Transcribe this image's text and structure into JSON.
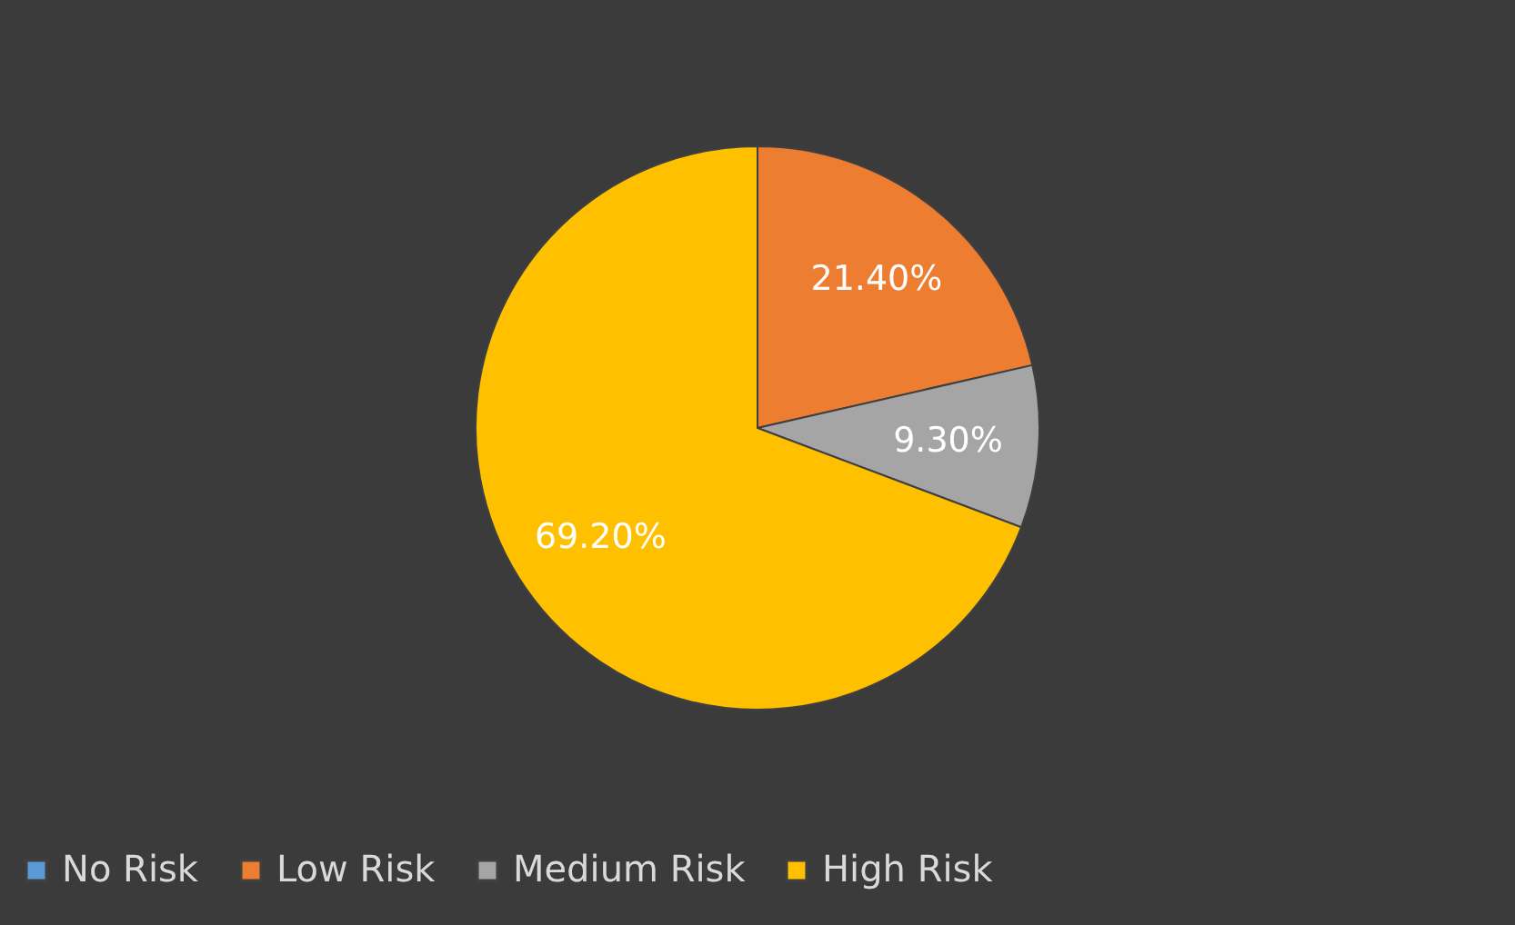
{
  "chart_data": {
    "type": "pie",
    "categories": [
      "No Risk",
      "Low Risk",
      "Medium Risk",
      "High Risk"
    ],
    "values": [
      0,
      21.4,
      9.3,
      69.2
    ],
    "colors": [
      "#5b9bd5",
      "#ed7d31",
      "#a5a5a5",
      "#ffc000"
    ],
    "value_labels": [
      null,
      "21.40%",
      "9.30%",
      "69.20%"
    ],
    "legend": "bottom"
  }
}
